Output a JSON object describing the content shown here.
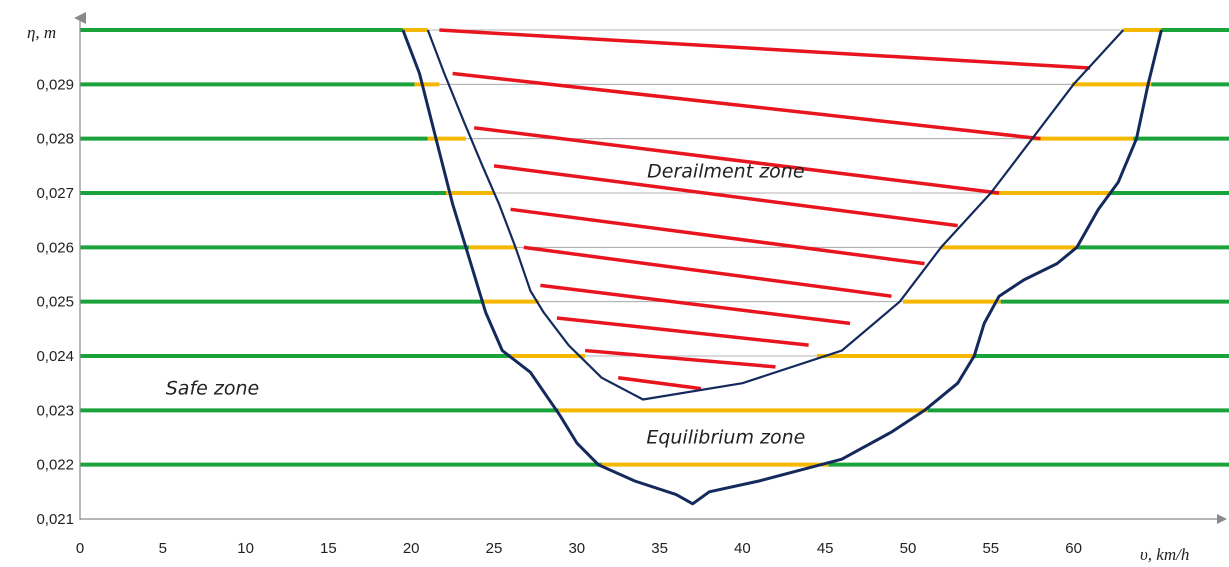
{
  "chart_data": {
    "type": "line",
    "title": "",
    "ylabel": "η, m",
    "xlabel": "υ, km/h",
    "xlim": [
      0,
      70
    ],
    "ylim": [
      0.021,
      0.03
    ],
    "x_ticks": [
      "0",
      "5",
      "10",
      "15",
      "20",
      "25",
      "30",
      "35",
      "40",
      "45",
      "50",
      "55",
      "60"
    ],
    "y_ticks": [
      "0,021",
      "0,022",
      "0,023",
      "0,024",
      "0,025",
      "0,026",
      "0,027",
      "0,028",
      "0,029"
    ],
    "grid": true,
    "legend": "none",
    "colors": {
      "safe": "#1aa33a",
      "equilibrium": "#f5b800",
      "derailment": "#e8141e",
      "boundary": "#152a5c",
      "grid": "#9a9a9a"
    },
    "zones": [
      {
        "name": "Safe zone",
        "label_x": 8,
        "label_y": 0.0234
      },
      {
        "name": "Equilibrium zone",
        "label_x": 39,
        "label_y": 0.0225
      },
      {
        "name": "Derailment zone",
        "label_x": 39,
        "label_y": 0.0274
      }
    ],
    "series": [
      {
        "name": "Outer boundary",
        "points": [
          [
            19.5,
            0.03
          ],
          [
            20.5,
            0.0292
          ],
          [
            21.5,
            0.028
          ],
          [
            22.5,
            0.0268
          ],
          [
            23.5,
            0.0258
          ],
          [
            24.5,
            0.0248
          ],
          [
            25.5,
            0.0241
          ],
          [
            27.2,
            0.0237
          ],
          [
            29,
            0.0229
          ],
          [
            30,
            0.0224
          ],
          [
            31.3,
            0.022
          ],
          [
            33.5,
            0.0217
          ],
          [
            36,
            0.02145
          ],
          [
            37,
            0.02128
          ],
          [
            38,
            0.0215
          ],
          [
            41,
            0.0217
          ],
          [
            43.5,
            0.0219
          ],
          [
            46,
            0.0221
          ],
          [
            49,
            0.0226
          ],
          [
            51,
            0.023
          ],
          [
            53,
            0.0235
          ],
          [
            54,
            0.024
          ],
          [
            54.6,
            0.0246
          ],
          [
            55.5,
            0.0251
          ],
          [
            57,
            0.0254
          ],
          [
            59,
            0.0257
          ],
          [
            60.2,
            0.026
          ],
          [
            61.5,
            0.0267
          ],
          [
            62.7,
            0.0272
          ],
          [
            63.8,
            0.028
          ],
          [
            64.5,
            0.029
          ],
          [
            65.3,
            0.03
          ]
        ]
      },
      {
        "name": "Inner boundary",
        "points": [
          [
            21,
            0.03
          ],
          [
            22,
            0.0292
          ],
          [
            23.2,
            0.0283
          ],
          [
            24.3,
            0.0275
          ],
          [
            25.3,
            0.0268
          ],
          [
            26.3,
            0.026
          ],
          [
            27.2,
            0.0252
          ],
          [
            28,
            0.0248
          ],
          [
            29.5,
            0.0242
          ],
          [
            31.5,
            0.0236
          ],
          [
            34,
            0.0232
          ],
          [
            40,
            0.0235
          ],
          [
            46,
            0.0241
          ],
          [
            49.5,
            0.025
          ],
          [
            52,
            0.026
          ],
          [
            55,
            0.027
          ],
          [
            57.5,
            0.028
          ],
          [
            60,
            0.029
          ],
          [
            63,
            0.03
          ]
        ]
      }
    ],
    "bands": [
      {
        "y": 0.03,
        "safe_left": [
          0,
          19.5
        ],
        "eq_left": [
          19.5,
          21
        ],
        "eq_right": [
          63,
          65.3
        ],
        "safe_right": [
          65.3,
          70
        ]
      },
      {
        "y": 0.029,
        "safe_left": [
          0,
          20.2
        ],
        "eq_left": [
          20.2,
          21.7
        ],
        "eq_right": [
          59.9,
          64.7
        ],
        "safe_right": [
          64.7,
          70
        ]
      },
      {
        "y": 0.028,
        "safe_left": [
          0,
          21
        ],
        "eq_left": [
          21,
          23.3
        ],
        "eq_right": [
          57.5,
          63.6
        ],
        "safe_right": [
          63.6,
          70
        ]
      },
      {
        "y": 0.027,
        "safe_left": [
          0,
          22.1
        ],
        "eq_left": [
          22.1,
          25
        ],
        "eq_right": [
          55,
          62.2
        ],
        "safe_right": [
          62.2,
          70
        ]
      },
      {
        "y": 0.026,
        "safe_left": [
          0,
          23.5
        ],
        "eq_left": [
          23.5,
          26.3
        ],
        "eq_right": [
          52,
          60.2
        ],
        "safe_right": [
          60.2,
          70
        ]
      },
      {
        "y": 0.025,
        "safe_left": [
          0,
          24.4
        ],
        "eq_left": [
          24.4,
          27.7
        ],
        "eq_right": [
          49.7,
          55.6
        ],
        "safe_right": [
          55.6,
          70
        ]
      },
      {
        "y": 0.024,
        "safe_left": [
          0,
          26
        ],
        "eq_left": [
          26,
          30.5
        ],
        "eq_right": [
          44.5,
          54
        ],
        "safe_right": [
          54,
          70
        ]
      },
      {
        "y": 0.023,
        "safe_left": [
          0,
          28.9
        ],
        "eq_left": [
          28.9,
          51.2
        ],
        "eq_right": null,
        "safe_right": [
          51.2,
          70
        ]
      },
      {
        "y": 0.022,
        "safe_left": [
          0,
          31.5
        ],
        "eq_left": [
          31.5,
          45.2
        ],
        "eq_right": null,
        "safe_right": [
          45.2,
          70
        ]
      }
    ],
    "hatch": [
      [
        [
          21,
          0.03
        ],
        [
          63,
          0.03
        ]
      ],
      [
        [
          21.7,
          0.03
        ],
        [
          61,
          0.0293
        ]
      ],
      [
        [
          22.5,
          0.0292
        ],
        [
          58,
          0.028
        ]
      ],
      [
        [
          23.8,
          0.0282
        ],
        [
          55.5,
          0.027
        ]
      ],
      [
        [
          25,
          0.0275
        ],
        [
          53,
          0.0264
        ]
      ],
      [
        [
          26,
          0.0267
        ],
        [
          51,
          0.0257
        ]
      ],
      [
        [
          26.8,
          0.026
        ],
        [
          49,
          0.0251
        ]
      ],
      [
        [
          27.8,
          0.0253
        ],
        [
          46.5,
          0.0246
        ]
      ],
      [
        [
          28.8,
          0.0247
        ],
        [
          44,
          0.0242
        ]
      ],
      [
        [
          30.5,
          0.0241
        ],
        [
          42,
          0.0238
        ]
      ],
      [
        [
          32.5,
          0.0236
        ],
        [
          37.5,
          0.0234
        ]
      ]
    ]
  }
}
